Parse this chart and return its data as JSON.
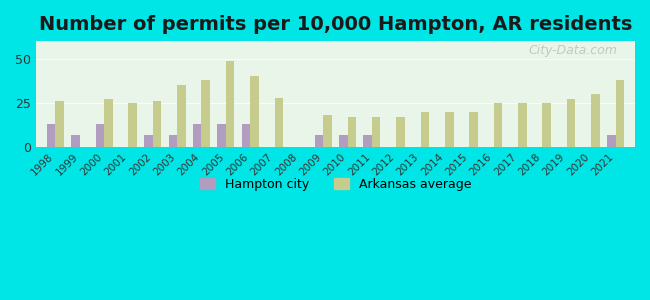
{
  "title": "Number of permits per 10,000 Hampton, AR residents",
  "years": [
    1998,
    1999,
    2000,
    2001,
    2002,
    2003,
    2004,
    2005,
    2006,
    2007,
    2008,
    2009,
    2010,
    2011,
    2012,
    2013,
    2014,
    2015,
    2016,
    2017,
    2018,
    2019,
    2020,
    2021
  ],
  "hampton": [
    13,
    7,
    13,
    0,
    7,
    7,
    13,
    13,
    13,
    0,
    0,
    7,
    7,
    7,
    0,
    0,
    0,
    0,
    0,
    0,
    0,
    0,
    0,
    7
  ],
  "arkansas": [
    26,
    0,
    27,
    25,
    26,
    35,
    38,
    49,
    40,
    28,
    0,
    18,
    17,
    17,
    17,
    20,
    20,
    20,
    25,
    25,
    25,
    27,
    30,
    38
  ],
  "hampton_color": "#b09dc0",
  "arkansas_color": "#c5cc8e",
  "background_outer": "#00e5e5",
  "background_inner_top": "#e8f5e8",
  "background_inner_bottom": "#d0f0f0",
  "ylim": [
    0,
    60
  ],
  "yticks": [
    0,
    25,
    50
  ],
  "bar_width": 0.35,
  "title_fontsize": 14,
  "watermark": "City-Data.com"
}
